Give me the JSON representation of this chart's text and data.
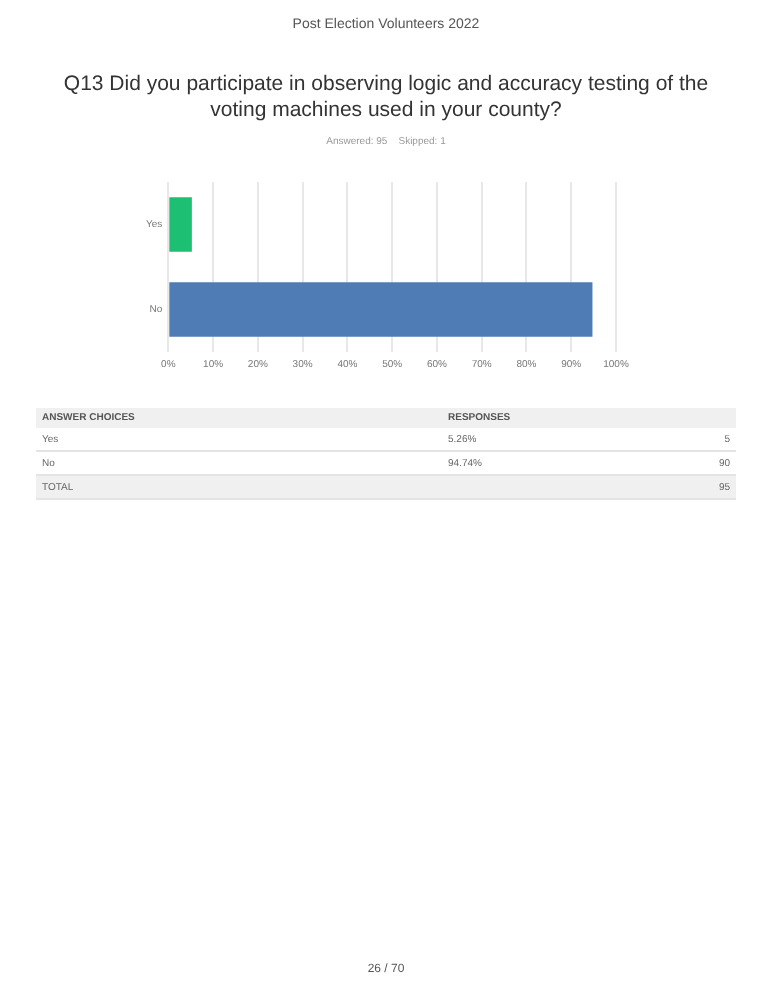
{
  "chart_data": {
    "type": "bar",
    "orientation": "horizontal",
    "title": "Q13 Did you participate in observing logic and accuracy testing of the voting machines used in your county?",
    "subtitle": "Answered: 95    Skipped: 1",
    "categories": [
      "Yes",
      "No"
    ],
    "values": [
      5.26,
      94.74
    ],
    "colors": [
      "#1dbf73",
      "#507cb6"
    ],
    "xlim": [
      0,
      100
    ],
    "xticks": [
      {
        "value": 0,
        "label": "0%"
      },
      {
        "value": 10,
        "label": "10%"
      },
      {
        "value": 20,
        "label": "20%"
      },
      {
        "value": 30,
        "label": "30%"
      },
      {
        "value": 40,
        "label": "40%"
      },
      {
        "value": 50,
        "label": "50%"
      },
      {
        "value": 60,
        "label": "60%"
      },
      {
        "value": 70,
        "label": "70%"
      },
      {
        "value": 80,
        "label": "80%"
      },
      {
        "value": 90,
        "label": "90%"
      },
      {
        "value": 100,
        "label": "100%"
      }
    ],
    "grid": "x",
    "annotations": [
      "Post Election Volunteers 2022",
      "ANSWER CHOICES",
      "RESPONSES",
      "5.26%",
      "5",
      "94.74%",
      "90",
      "TOTAL",
      "95",
      "26 / 70"
    ]
  }
}
